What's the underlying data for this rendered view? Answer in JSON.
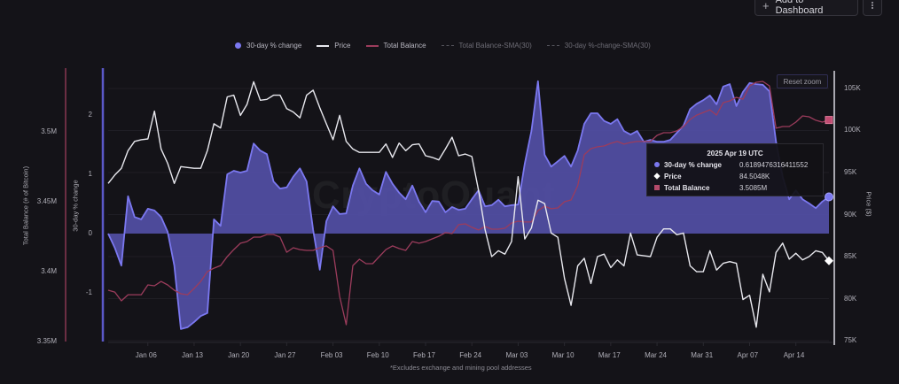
{
  "toolbar": {
    "add_to_dashboard": "Add to Dashboard",
    "add_icon": "plus-icon",
    "more_icon": "kebab-menu-icon"
  },
  "watermark": "CryptoQuant",
  "footnote": "*Excludes exchange and mining pool addresses",
  "reset_zoom": "Reset zoom",
  "tooltip": {
    "title": "2025 Apr 19 UTC",
    "rows": [
      {
        "label": "30-day % change",
        "value": "0.6189476316411552",
        "color": "#7b78f0",
        "marker": "circle"
      },
      {
        "label": "Price",
        "value": "84.5048K",
        "color": "#ffffff",
        "marker": "diamond"
      },
      {
        "label": "Total Balance",
        "value": "3.5085M",
        "color": "#b34a6a",
        "marker": "square"
      }
    ]
  },
  "chart_data": {
    "type": "line",
    "title": "",
    "x_start": "2024-12-31",
    "x_end": "2025-04-19",
    "x_interval": "1 day",
    "xlabel": "",
    "x_ticks": [
      "Jan 06",
      "Jan 13",
      "Jan 20",
      "Jan 27",
      "Feb 03",
      "Feb 10",
      "Feb 17",
      "Feb 24",
      "Mar 03",
      "Mar 10",
      "Mar 17",
      "Mar 24",
      "Mar 31",
      "Apr 07",
      "Apr 14"
    ],
    "x_tick_day_offsets": [
      6,
      13,
      20,
      27,
      34,
      41,
      48,
      55,
      62,
      69,
      76,
      83,
      90,
      97,
      104
    ],
    "grid": true,
    "legend": {
      "placement": "top-center",
      "entries": [
        {
          "name": "30-day % change",
          "color": "#7b78f0",
          "style": "area",
          "visible": true
        },
        {
          "name": "Price",
          "color": "#e8e8ee",
          "style": "line",
          "visible": true
        },
        {
          "name": "Total Balance",
          "color": "#9c3c5c",
          "style": "line",
          "visible": true
        },
        {
          "name": "Total Balance-SMA(30)",
          "color": "#55545c",
          "style": "dashed",
          "visible": false
        },
        {
          "name": "30-day %-change-SMA(30)",
          "color": "#55545c",
          "style": "dashed",
          "visible": false
        }
      ]
    },
    "axes": {
      "balance": {
        "label": "Total Balance (# of Bitcoin)",
        "side": "left-outer",
        "range": [
          3.35,
          3.5437
        ],
        "ticks": [
          3.35,
          3.4,
          3.45,
          3.5
        ],
        "tick_labels": [
          "3.35M",
          "3.4M",
          "3.45M",
          "3.5M"
        ],
        "color": "#6b2e43"
      },
      "pct": {
        "label": "30-day % change",
        "side": "left-inner",
        "range": [
          -1.82,
          2.746
        ],
        "ticks": [
          -1,
          0,
          1,
          2
        ],
        "tick_labels": [
          "-1",
          "0",
          "1",
          "2"
        ],
        "color": "#5b58c8"
      },
      "price": {
        "label": "Price ($)",
        "side": "right",
        "range": [
          74.9,
          107.1
        ],
        "ticks": [
          75,
          80,
          85,
          90,
          95,
          100,
          105
        ],
        "tick_labels": [
          "75K",
          "80K",
          "85K",
          "90K",
          "95K",
          "100K",
          "105K"
        ],
        "color": "#a9a8b0"
      }
    },
    "series": [
      {
        "name": "30-day % change",
        "axis": "pct",
        "type": "area",
        "color": "#7b78f0",
        "fill": "#524fa6",
        "values": [
          0.0,
          -0.24,
          -0.54,
          0.63,
          0.28,
          0.24,
          0.42,
          0.39,
          0.28,
          0.03,
          -0.54,
          -1.61,
          -1.58,
          -1.49,
          -1.39,
          -1.34,
          0.24,
          0.13,
          1.0,
          1.06,
          1.03,
          1.06,
          1.52,
          1.4,
          1.34,
          0.88,
          0.76,
          0.78,
          0.96,
          1.1,
          0.88,
          0.06,
          -0.61,
          0.21,
          0.46,
          0.33,
          0.34,
          0.81,
          1.1,
          0.84,
          0.73,
          0.66,
          1.04,
          0.84,
          0.69,
          0.58,
          0.81,
          0.54,
          0.36,
          0.55,
          0.54,
          0.36,
          0.45,
          0.4,
          0.42,
          0.58,
          0.73,
          0.46,
          0.48,
          0.57,
          0.46,
          0.48,
          0.49,
          1.18,
          1.73,
          2.57,
          1.33,
          1.13,
          1.22,
          1.31,
          1.13,
          1.4,
          1.85,
          2.03,
          2.03,
          1.9,
          1.85,
          1.93,
          1.73,
          1.67,
          1.73,
          1.55,
          1.58,
          1.55,
          1.55,
          1.58,
          1.7,
          1.82,
          2.1,
          2.19,
          2.25,
          2.33,
          2.18,
          2.48,
          2.52,
          2.15,
          2.39,
          2.54,
          2.52,
          2.51,
          2.4,
          1.55,
          0.96,
          0.58,
          0.73,
          0.58,
          0.51,
          0.43,
          0.54,
          0.62
        ]
      },
      {
        "name": "Price",
        "axis": "price",
        "type": "line",
        "color": "#e8e8ee",
        "unit": "K USD",
        "values": [
          93.7,
          94.7,
          95.5,
          97.6,
          98.7,
          98.9,
          99.0,
          102.3,
          97.8,
          96.1,
          93.7,
          95.7,
          95.6,
          95.5,
          95.5,
          97.6,
          100.8,
          100.3,
          104.0,
          104.2,
          101.8,
          103.1,
          105.8,
          103.6,
          103.7,
          104.2,
          104.2,
          102.6,
          102.2,
          101.5,
          104.2,
          104.8,
          102.7,
          100.8,
          98.9,
          101.8,
          98.7,
          97.8,
          97.4,
          97.4,
          97.4,
          97.4,
          98.4,
          96.8,
          98.5,
          97.6,
          98.3,
          98.4,
          97.0,
          96.8,
          96.5,
          97.8,
          99.2,
          97.0,
          97.2,
          96.9,
          92.9,
          88.2,
          85.0,
          85.7,
          85.3,
          86.8,
          94.5,
          87.1,
          88.4,
          91.7,
          91.3,
          87.8,
          87.3,
          82.4,
          79.2,
          83.9,
          84.8,
          81.8,
          85.0,
          85.3,
          83.7,
          84.6,
          83.9,
          87.8,
          85.2,
          85.1,
          85.0,
          87.3,
          88.3,
          88.3,
          87.6,
          87.8,
          83.9,
          83.2,
          83.2,
          85.7,
          83.4,
          84.2,
          84.4,
          84.2,
          79.9,
          80.4,
          76.6,
          82.9,
          80.8,
          85.5,
          86.6,
          84.7,
          85.4,
          84.6,
          85.0,
          85.7,
          85.5,
          84.5
        ]
      },
      {
        "name": "Total Balance",
        "axis": "balance",
        "type": "line",
        "color": "#9c3c5c",
        "unit": "M BTC",
        "values": [
          3.3867,
          3.3854,
          3.3791,
          3.3835,
          3.3835,
          3.3835,
          3.3905,
          3.3899,
          3.393,
          3.3905,
          3.3867,
          3.3842,
          3.3835,
          3.388,
          3.393,
          3.4,
          3.4025,
          3.4044,
          3.4108,
          3.4158,
          3.4203,
          3.4215,
          3.4247,
          3.4247,
          3.4266,
          3.4266,
          3.4247,
          3.4139,
          3.4171,
          3.4158,
          3.4152,
          3.4152,
          3.4171,
          3.4184,
          3.4152,
          3.3823,
          3.362,
          3.4044,
          3.4089,
          3.4057,
          3.4057,
          3.4108,
          3.4158,
          3.4184,
          3.4165,
          3.4152,
          3.4215,
          3.4203,
          3.4215,
          3.4234,
          3.4253,
          3.4279,
          3.4272,
          3.4336,
          3.4342,
          3.4317,
          3.4298,
          3.4323,
          3.4304,
          3.4304,
          3.431,
          3.4348,
          3.4361,
          3.4355,
          3.4355,
          3.4437,
          3.4468,
          3.445,
          3.4456,
          3.45,
          3.4513,
          3.4614,
          3.4836,
          3.488,
          3.4893,
          3.4899,
          3.4918,
          3.4931,
          3.4912,
          3.4924,
          3.4931,
          3.4931,
          3.4931,
          3.4975,
          3.4994,
          3.4994,
          3.5007,
          3.5038,
          3.5089,
          3.512,
          3.5139,
          3.5158,
          3.512,
          3.5209,
          3.5222,
          3.5247,
          3.5234,
          3.5329,
          3.5355,
          3.5361,
          3.5329,
          3.5026,
          3.5038,
          3.5038,
          3.507,
          3.5114,
          3.5108,
          3.5083,
          3.507,
          3.5085
        ]
      }
    ]
  }
}
